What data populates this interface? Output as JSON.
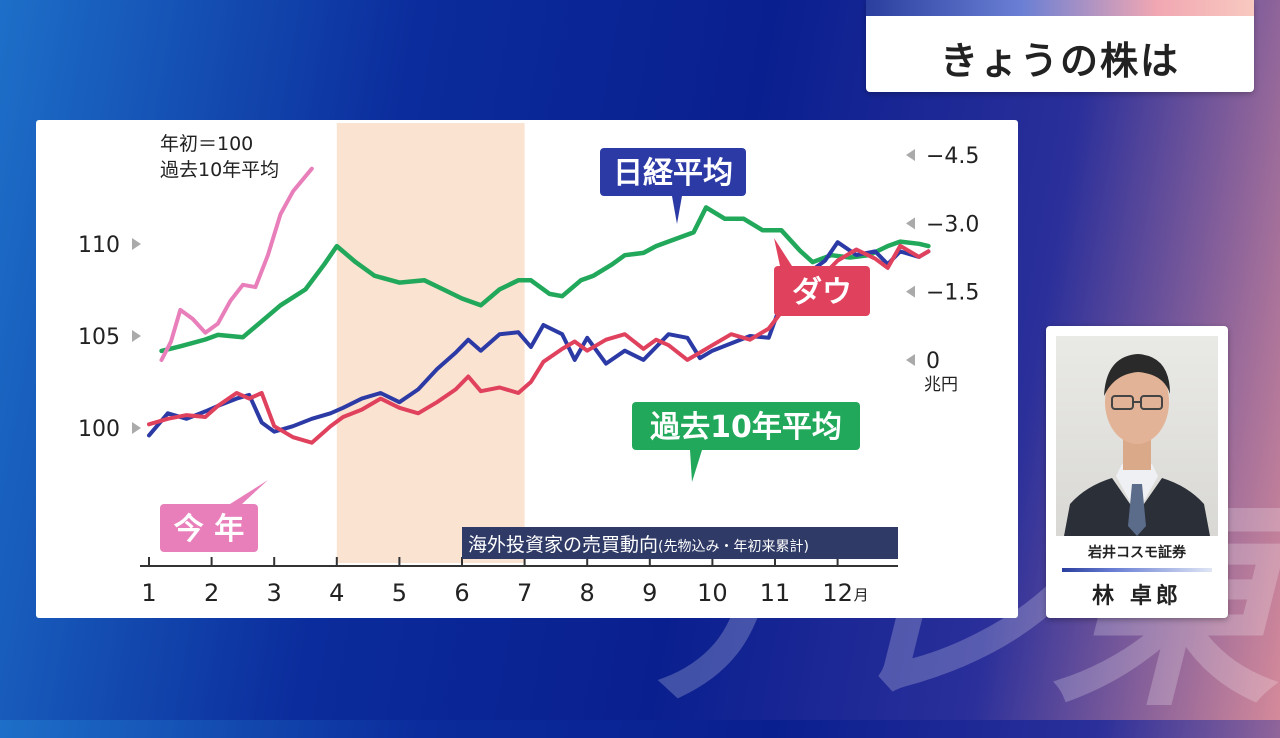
{
  "header": {
    "title": "きょうの株は"
  },
  "watermark": {
    "text": "テレ東"
  },
  "presenter": {
    "company": "岩井コスモ証券",
    "name": "林 卓郎"
  },
  "colors": {
    "nikkei": "#2c3aa6",
    "dow": "#e0425e",
    "avg10": "#21a85a",
    "thisyear": "#e87fbb",
    "highlight": "#fbe3d2",
    "caption_bg": "#2f3a66"
  },
  "chart_data": {
    "type": "line",
    "note_line1": "年初＝100",
    "note_line2": "過去10年平均",
    "left_axis": {
      "ticks": [
        100,
        105,
        110
      ],
      "tick_labels": [
        "100",
        "105",
        "110"
      ],
      "range": [
        98,
        111
      ]
    },
    "right_axis": {
      "unit": "兆円",
      "ticks": [
        0,
        -1.5,
        -3.0,
        -4.5
      ],
      "tick_labels": [
        "0",
        "−1.5",
        "−3.0",
        "−4.5"
      ],
      "range": [
        -4.5,
        0
      ]
    },
    "x_axis": {
      "ticks": [
        1,
        2,
        3,
        4,
        5,
        6,
        7,
        8,
        9,
        10,
        11,
        12
      ],
      "tick_labels": [
        "1",
        "2",
        "3",
        "4",
        "5",
        "6",
        "7",
        "8",
        "9",
        "10",
        "11",
        "12"
      ],
      "month_suffix": "月"
    },
    "highlight_range": [
      4,
      7
    ],
    "series_labels": {
      "nikkei": "日経平均",
      "dow": "ダウ",
      "avg10": "過去10年平均",
      "thisyear": "今 年"
    },
    "caption_main": "海外投資家の売買動向",
    "caption_sub": "(先物込み・年初来累計)",
    "series": [
      {
        "key": "nikkei",
        "axis": "left",
        "x": [
          1.0,
          1.3,
          1.6,
          1.9,
          2.1,
          2.4,
          2.6,
          2.8,
          3.0,
          3.3,
          3.6,
          3.9,
          4.1,
          4.4,
          4.7,
          5.0,
          5.3,
          5.6,
          5.9,
          6.1,
          6.3,
          6.6,
          6.9,
          7.1,
          7.3,
          7.6,
          7.8,
          8.0,
          8.3,
          8.6,
          8.9,
          9.1,
          9.3,
          9.6,
          9.8,
          10.0,
          10.3,
          10.6,
          10.9,
          11.1,
          11.3,
          11.6,
          11.8,
          12.0,
          12.3,
          12.6,
          12.8,
          13.0,
          13.3,
          13.45
        ],
        "y": [
          99.6,
          100.8,
          100.5,
          100.9,
          101.2,
          101.6,
          101.8,
          100.3,
          99.8,
          100.1,
          100.5,
          100.8,
          101.1,
          101.6,
          101.9,
          101.4,
          102.1,
          103.2,
          104.1,
          104.8,
          104.2,
          105.1,
          105.2,
          104.4,
          105.6,
          105.1,
          103.7,
          104.9,
          103.5,
          104.2,
          103.7,
          104.4,
          105.1,
          104.9,
          103.8,
          104.2,
          104.6,
          105.0,
          104.9,
          106.8,
          108.2,
          108.6,
          109.1,
          110.1,
          109.4,
          109.6,
          108.9,
          109.6,
          109.3,
          109.6
        ]
      },
      {
        "key": "dow",
        "axis": "left",
        "x": [
          1.0,
          1.3,
          1.6,
          1.9,
          2.1,
          2.4,
          2.6,
          2.8,
          3.0,
          3.3,
          3.6,
          3.9,
          4.1,
          4.4,
          4.7,
          5.0,
          5.3,
          5.6,
          5.9,
          6.1,
          6.3,
          6.6,
          6.9,
          7.1,
          7.3,
          7.6,
          7.8,
          8.0,
          8.3,
          8.6,
          8.9,
          9.1,
          9.3,
          9.6,
          9.8,
          10.0,
          10.3,
          10.6,
          10.9,
          11.1,
          11.3,
          11.6,
          11.8,
          12.0,
          12.3,
          12.6,
          12.8,
          13.0,
          13.3,
          13.45
        ],
        "y": [
          100.2,
          100.5,
          100.7,
          100.6,
          101.2,
          101.9,
          101.6,
          101.9,
          100.1,
          99.5,
          99.2,
          100.1,
          100.6,
          101.0,
          101.6,
          101.1,
          100.8,
          101.4,
          102.1,
          102.8,
          102.0,
          102.2,
          101.9,
          102.5,
          103.6,
          104.3,
          104.7,
          104.2,
          104.8,
          105.1,
          104.3,
          104.8,
          104.5,
          103.7,
          104.1,
          104.5,
          105.1,
          104.8,
          105.4,
          106.3,
          107.6,
          107.8,
          108.4,
          109.1,
          109.7,
          109.2,
          108.7,
          109.9,
          109.3,
          109.6
        ]
      },
      {
        "key": "avg10",
        "axis": "right",
        "x": [
          1.2,
          1.5,
          1.9,
          2.1,
          2.5,
          2.8,
          3.1,
          3.5,
          3.8,
          4.0,
          4.3,
          4.6,
          5.0,
          5.4,
          5.7,
          6.0,
          6.3,
          6.6,
          6.9,
          7.1,
          7.4,
          7.6,
          7.9,
          8.1,
          8.4,
          8.6,
          8.9,
          9.1,
          9.4,
          9.7,
          9.9,
          10.2,
          10.5,
          10.8,
          11.1,
          11.4,
          11.6,
          11.9,
          12.2,
          12.5,
          12.8,
          13.0,
          13.3,
          13.45
        ],
        "y": [
          -0.2,
          -0.3,
          -0.45,
          -0.55,
          -0.5,
          -0.85,
          -1.2,
          -1.55,
          -2.1,
          -2.5,
          -2.15,
          -1.85,
          -1.7,
          -1.75,
          -1.55,
          -1.35,
          -1.2,
          -1.55,
          -1.75,
          -1.75,
          -1.45,
          -1.4,
          -1.75,
          -1.85,
          -2.1,
          -2.3,
          -2.35,
          -2.5,
          -2.65,
          -2.8,
          -3.35,
          -3.1,
          -3.1,
          -2.85,
          -2.85,
          -2.4,
          -2.15,
          -2.3,
          -2.25,
          -2.3,
          -2.5,
          -2.6,
          -2.55,
          -2.5
        ]
      },
      {
        "key": "thisyear",
        "axis": "right",
        "x": [
          1.2,
          1.35,
          1.5,
          1.7,
          1.9,
          2.1,
          2.3,
          2.5,
          2.7,
          2.9,
          3.1,
          3.3,
          3.6
        ],
        "y": [
          0.0,
          -0.4,
          -1.1,
          -0.9,
          -0.6,
          -0.8,
          -1.3,
          -1.65,
          -1.6,
          -2.3,
          -3.2,
          -3.7,
          -4.2
        ]
      }
    ]
  }
}
